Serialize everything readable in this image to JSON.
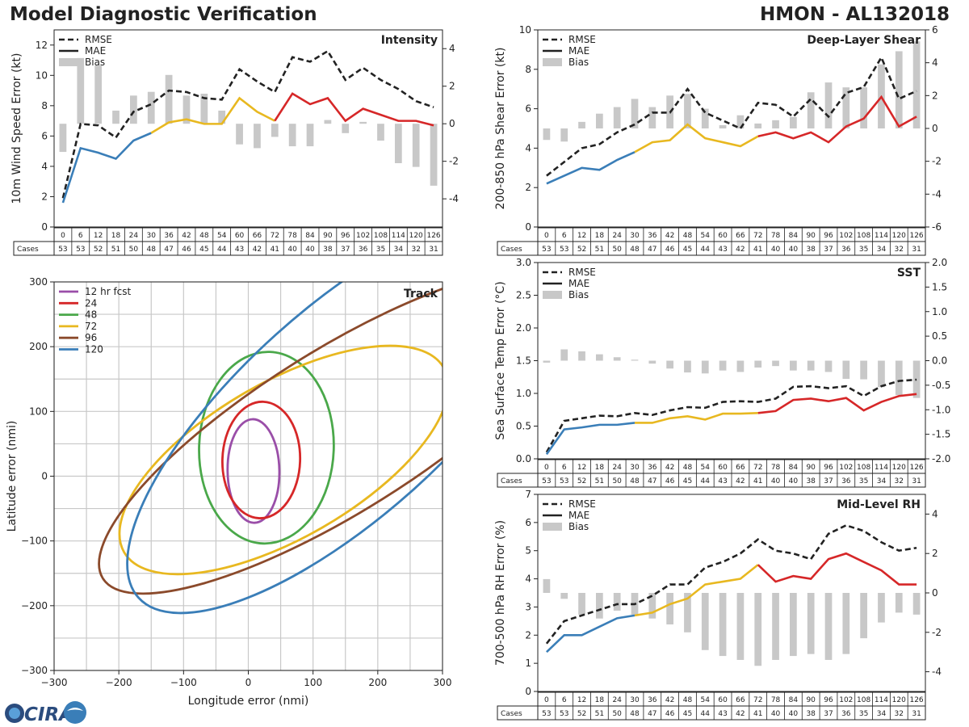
{
  "title": "Model Diagnostic Verification",
  "storm": "HMON - AL132018",
  "logo_text": "CIRA",
  "legend_labels": {
    "rmse": "RMSE",
    "mae": "MAE",
    "bias": "Bias"
  },
  "cases_label": "Cases",
  "colors": {
    "early": "#3a7eb8",
    "mid": "#e8b820",
    "late": "#d62728",
    "rmse": "#222222",
    "bias": "#c8c8c8",
    "grid": "#c8c8c8"
  },
  "chart_data": [
    {
      "id": "intensity",
      "type": "line",
      "title": "Intensity",
      "ylabel": "10m Wind Speed Error (kt)",
      "ylim": [
        0,
        13
      ],
      "yticks": [
        0,
        2,
        4,
        6,
        8,
        10,
        12
      ],
      "y2lim": [
        -5.5,
        5
      ],
      "y2ticks": [
        -4,
        -2,
        0,
        2,
        4
      ],
      "x": [
        0,
        6,
        12,
        18,
        24,
        30,
        36,
        42,
        48,
        54,
        60,
        66,
        72,
        78,
        84,
        90,
        96,
        102,
        108,
        114,
        120,
        126
      ],
      "cases": [
        53,
        53,
        52,
        51,
        50,
        48,
        47,
        46,
        45,
        44,
        43,
        42,
        41,
        40,
        40,
        38,
        37,
        36,
        35,
        34,
        32,
        31
      ],
      "rmse": [
        1.9,
        6.8,
        6.7,
        5.9,
        7.6,
        8.1,
        9.0,
        8.9,
        8.5,
        8.4,
        10.4,
        9.6,
        8.9,
        11.2,
        10.9,
        11.6,
        9.7,
        10.5,
        9.7,
        9.1,
        8.3,
        7.9
      ],
      "mae": [
        1.6,
        5.2,
        4.9,
        4.5,
        5.7,
        6.2,
        6.9,
        7.1,
        6.8,
        6.8,
        8.5,
        7.6,
        7.0,
        8.8,
        8.1,
        8.5,
        7.0,
        7.8,
        7.4,
        7.0,
        7.0,
        6.7
      ],
      "bias": [
        -1.5,
        3.5,
        3.1,
        0.7,
        1.5,
        1.7,
        2.6,
        1.5,
        1.6,
        0.7,
        -1.1,
        -1.3,
        -0.7,
        -1.2,
        -1.2,
        0.2,
        -0.5,
        0.1,
        -0.9,
        -2.1,
        -2.3,
        -3.3
      ]
    },
    {
      "id": "shear",
      "type": "line",
      "title": "Deep-Layer Shear",
      "ylabel": "200-850 hPa Shear Error (kt)",
      "ylim": [
        0,
        10
      ],
      "yticks": [
        0,
        2,
        4,
        6,
        8,
        10
      ],
      "y2lim": [
        -6,
        6
      ],
      "y2ticks": [
        -6,
        -4,
        -2,
        0,
        2,
        4,
        6
      ],
      "x": [
        0,
        6,
        12,
        18,
        24,
        30,
        36,
        42,
        48,
        54,
        60,
        66,
        72,
        78,
        84,
        90,
        96,
        102,
        108,
        114,
        120,
        126
      ],
      "cases": [
        53,
        53,
        52,
        51,
        50,
        48,
        47,
        46,
        45,
        44,
        43,
        42,
        41,
        40,
        40,
        38,
        37,
        36,
        35,
        34,
        32,
        31
      ],
      "rmse": [
        2.6,
        3.3,
        4.0,
        4.2,
        4.8,
        5.2,
        5.8,
        5.8,
        7.0,
        5.8,
        5.4,
        5.0,
        6.3,
        6.2,
        5.6,
        6.5,
        5.6,
        6.8,
        7.1,
        8.6,
        6.5,
        6.9
      ],
      "mae": [
        2.2,
        2.6,
        3.0,
        2.9,
        3.4,
        3.8,
        4.3,
        4.4,
        5.2,
        4.5,
        4.3,
        4.1,
        4.6,
        4.8,
        4.5,
        4.8,
        4.3,
        5.1,
        5.5,
        6.6,
        5.1,
        5.6
      ],
      "bias": [
        -0.7,
        -0.8,
        0.4,
        0.9,
        1.3,
        1.8,
        1.3,
        2.0,
        2.1,
        1.2,
        0.2,
        0.8,
        0.3,
        0.5,
        0.7,
        2.2,
        2.8,
        2.5,
        2.5,
        3.9,
        4.7,
        5.3
      ]
    },
    {
      "id": "sst",
      "type": "line",
      "title": "SST",
      "ylabel": "Sea Surface Temp Error (°C)",
      "ylim": [
        0,
        3
      ],
      "yticks": [
        0.0,
        0.5,
        1.0,
        1.5,
        2.0,
        2.5,
        3.0
      ],
      "y2lim": [
        -2,
        2
      ],
      "y2ticks": [
        -2.0,
        -1.5,
        -1.0,
        -0.5,
        0.0,
        0.5,
        1.0,
        1.5,
        2.0
      ],
      "x": [
        0,
        6,
        12,
        18,
        24,
        30,
        36,
        42,
        48,
        54,
        60,
        66,
        72,
        78,
        84,
        90,
        96,
        102,
        108,
        114,
        120,
        126
      ],
      "cases": [
        53,
        53,
        52,
        51,
        50,
        48,
        47,
        46,
        45,
        44,
        43,
        42,
        41,
        40,
        40,
        38,
        37,
        36,
        35,
        34,
        32,
        31
      ],
      "rmse": [
        0.1,
        0.58,
        0.62,
        0.66,
        0.65,
        0.7,
        0.67,
        0.74,
        0.79,
        0.78,
        0.87,
        0.88,
        0.87,
        0.92,
        1.1,
        1.11,
        1.08,
        1.11,
        0.96,
        1.11,
        1.19,
        1.21
      ],
      "mae": [
        0.07,
        0.45,
        0.48,
        0.52,
        0.52,
        0.55,
        0.55,
        0.62,
        0.65,
        0.6,
        0.69,
        0.69,
        0.7,
        0.73,
        0.9,
        0.92,
        0.88,
        0.93,
        0.74,
        0.87,
        0.96,
        0.99
      ],
      "bias": [
        -0.04,
        0.23,
        0.19,
        0.13,
        0.07,
        0.02,
        -0.06,
        -0.16,
        -0.24,
        -0.26,
        -0.2,
        -0.23,
        -0.14,
        -0.11,
        -0.2,
        -0.2,
        -0.23,
        -0.37,
        -0.38,
        -0.54,
        -0.7,
        -0.76
      ]
    },
    {
      "id": "rh",
      "type": "line",
      "title": "Mid-Level RH",
      "ylabel": "700-500 hPa RH Error (%)",
      "ylim": [
        0,
        7
      ],
      "yticks": [
        0,
        1,
        2,
        3,
        4,
        5,
        6,
        7
      ],
      "y2lim": [
        -5,
        5
      ],
      "y2ticks": [
        -4,
        -2,
        0,
        2,
        4
      ],
      "x": [
        0,
        6,
        12,
        18,
        24,
        30,
        36,
        42,
        48,
        54,
        60,
        66,
        72,
        78,
        84,
        90,
        96,
        102,
        108,
        114,
        120,
        126
      ],
      "cases": [
        53,
        53,
        52,
        51,
        50,
        48,
        47,
        46,
        45,
        44,
        43,
        42,
        41,
        40,
        40,
        38,
        37,
        36,
        35,
        34,
        32,
        31
      ],
      "rmse": [
        1.7,
        2.5,
        2.7,
        2.9,
        3.1,
        3.1,
        3.4,
        3.8,
        3.8,
        4.4,
        4.6,
        4.9,
        5.4,
        5.0,
        4.9,
        4.7,
        5.6,
        5.9,
        5.7,
        5.3,
        5.0,
        5.1
      ],
      "mae": [
        1.4,
        2.0,
        2.0,
        2.3,
        2.6,
        2.7,
        2.8,
        3.1,
        3.3,
        3.8,
        3.9,
        4.0,
        4.5,
        3.9,
        4.1,
        4.0,
        4.7,
        4.9,
        4.6,
        4.3,
        3.8,
        3.8
      ],
      "bias": [
        0.7,
        -0.3,
        -1.1,
        -1.3,
        -0.9,
        -1.1,
        -1.3,
        -1.6,
        -2.0,
        -2.9,
        -3.2,
        -3.4,
        -3.7,
        -3.4,
        -3.2,
        -3.1,
        -3.4,
        -3.1,
        -2.3,
        -1.5,
        -1.0,
        -1.1
      ]
    },
    {
      "id": "track",
      "type": "ellipse",
      "title": "Track",
      "xlabel": "Longitude error (nmi)",
      "ylabel": "Latitude error (nmi)",
      "xlim": [
        -300,
        300
      ],
      "ylim": [
        -300,
        300
      ],
      "xticks": [
        -300,
        -200,
        -100,
        0,
        100,
        200,
        300
      ],
      "yticks": [
        -300,
        -200,
        -100,
        0,
        100,
        200,
        300
      ],
      "ellipses": [
        {
          "label": "12 hr fcst",
          "color": "#9a4ea8",
          "cx": 8,
          "cy": 8,
          "a": 80,
          "b": 40,
          "angle": 91
        },
        {
          "label": "24",
          "color": "#d62728",
          "cx": 20,
          "cy": 25,
          "a": 90,
          "b": 60,
          "angle": 88
        },
        {
          "label": "48",
          "color": "#4aa84a",
          "cx": 28,
          "cy": 44,
          "a": 148,
          "b": 104,
          "angle": 88
        },
        {
          "label": "72",
          "color": "#e8b820",
          "cx": 55,
          "cy": 25,
          "a": 285,
          "b": 120,
          "angle": 30
        },
        {
          "label": "96",
          "color": "#8b4a2b",
          "cx": 140,
          "cy": 70,
          "a": 430,
          "b": 125,
          "angle": 32
        },
        {
          "label": "120",
          "color": "#3a7eb8",
          "cx": 150,
          "cy": 100,
          "a": 430,
          "b": 160,
          "angle": 42
        }
      ]
    }
  ]
}
